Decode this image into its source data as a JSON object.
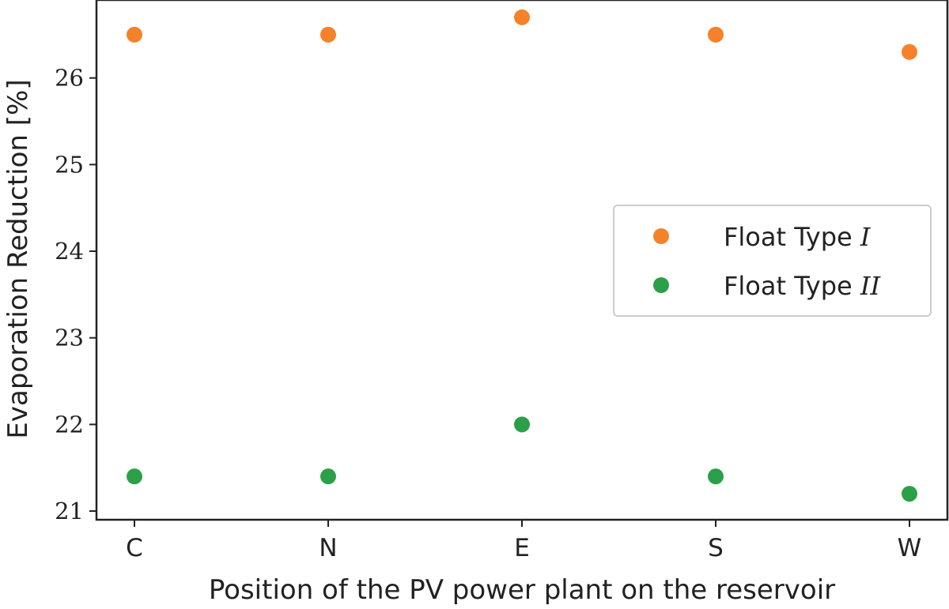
{
  "chart_data": {
    "type": "scatter",
    "title": "",
    "xlabel": "Position of the PV power plant on the reservoir",
    "ylabel": "Evaporation Reduction [%]",
    "categories": [
      "C",
      "N",
      "E",
      "S",
      "W"
    ],
    "ylim": [
      20.9,
      26.9
    ],
    "yticks": [
      "21",
      "22",
      "23",
      "24",
      "25",
      "26"
    ],
    "grid": false,
    "legend_position": "center-right",
    "series": [
      {
        "name": "Float Type I",
        "label_text": "Float Type ",
        "label_italic": "I",
        "color": "#f5822a",
        "values": [
          26.5,
          26.5,
          26.7,
          26.5,
          26.3
        ]
      },
      {
        "name": "Float Type II",
        "label_text": "Float Type ",
        "label_italic": "II",
        "color": "#2ca048",
        "values": [
          21.4,
          21.4,
          22.0,
          21.4,
          21.2
        ]
      }
    ]
  }
}
